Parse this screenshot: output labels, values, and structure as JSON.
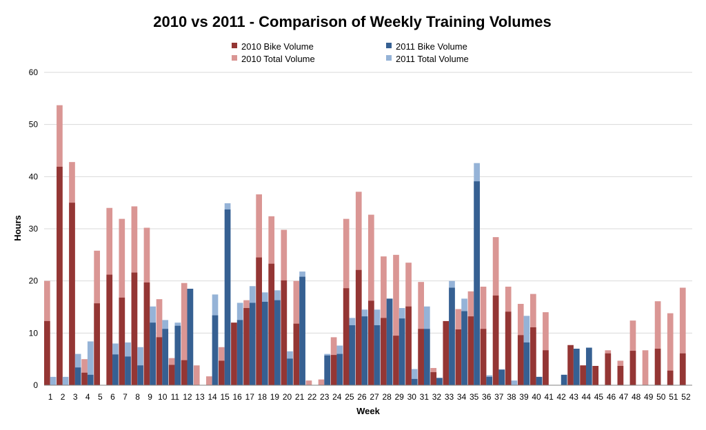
{
  "colors": {
    "bike_2010": "#943634",
    "total_2010": "#DA9694",
    "bike_2011": "#366092",
    "total_2011": "#95B3D7",
    "grid": "#D9D9D9",
    "axis": "#808080"
  },
  "chart_data": {
    "type": "bar",
    "title": "2010 vs 2011 - Comparison of Weekly Training Volumes",
    "xlabel": "Week",
    "ylabel": "Hours",
    "ylim": [
      0,
      60
    ],
    "yticks": [
      "0",
      "10",
      "20",
      "30",
      "40",
      "50",
      "60"
    ],
    "grid": true,
    "legend_position": "top-center",
    "categories": [
      "1",
      "2",
      "3",
      "4",
      "5",
      "6",
      "7",
      "8",
      "9",
      "10",
      "11",
      "12",
      "13",
      "14",
      "15",
      "16",
      "17",
      "18",
      "19",
      "20",
      "21",
      "22",
      "23",
      "24",
      "25",
      "26",
      "27",
      "28",
      "29",
      "30",
      "31",
      "32",
      "33",
      "34",
      "35",
      "36",
      "37",
      "38",
      "39",
      "40",
      "41",
      "42",
      "43",
      "44",
      "45",
      "46",
      "47",
      "48",
      "49",
      "50",
      "51",
      "52"
    ],
    "series": [
      {
        "name": "2010 Total Volume",
        "year": "2010",
        "kind": "total",
        "values": [
          20,
          53.7,
          42.8,
          5,
          25.8,
          34,
          31.9,
          34.3,
          30.2,
          16.5,
          5.2,
          19.6,
          3.8,
          1.7,
          7.3,
          12,
          16.3,
          36.6,
          32.4,
          29.8,
          20,
          0.9,
          1.1,
          9.2,
          31.9,
          37.1,
          32.7,
          24.7,
          25,
          23.5,
          19.8,
          3.3,
          12.3,
          14.6,
          18,
          18.9,
          28.4,
          18.9,
          15.6,
          17.5,
          14,
          0,
          0,
          3.8,
          3.7,
          6.7,
          4.7,
          12.4,
          6.7,
          16.1,
          13.8,
          18.7
        ]
      },
      {
        "name": "2010 Bike Volume",
        "year": "2010",
        "kind": "bike",
        "values": [
          12.3,
          41.9,
          35,
          2.4,
          15.7,
          21.2,
          16.8,
          21.6,
          19.7,
          9.2,
          3.9,
          4.8,
          0,
          0,
          4.7,
          12,
          14.8,
          24.5,
          23.3,
          20.1,
          11.8,
          0,
          0,
          5.8,
          18.6,
          22.1,
          16.2,
          12.9,
          9.5,
          15.1,
          10.8,
          2.5,
          12.3,
          10.7,
          13.2,
          10.8,
          17.2,
          14.1,
          9.6,
          11.1,
          6.7,
          0,
          7.7,
          3.8,
          3.7,
          6.1,
          3.7,
          6.6,
          0,
          7,
          2.8,
          6.1
        ]
      },
      {
        "name": "2011 Total Volume",
        "year": "2011",
        "kind": "total",
        "values": [
          1.6,
          1.6,
          6,
          8.4,
          0,
          8,
          8.2,
          7.3,
          15.1,
          12.5,
          12,
          18.5,
          0,
          17.4,
          34.9,
          15.8,
          19,
          17.8,
          18.2,
          6.5,
          21.8,
          0,
          6,
          7.6,
          12.9,
          14.5,
          14.5,
          16.6,
          14.8,
          3.1,
          15.1,
          1.4,
          20,
          16.6,
          42.6,
          1.9,
          3,
          0.9,
          13.3,
          1.6,
          0,
          2,
          7,
          7.2,
          0,
          0,
          0,
          0,
          0,
          0,
          0,
          0
        ]
      },
      {
        "name": "2011 Bike Volume",
        "year": "2011",
        "kind": "bike",
        "values": [
          0,
          0,
          3.4,
          2,
          0,
          5.9,
          5.5,
          3.8,
          12,
          10.8,
          11.4,
          18.5,
          0,
          13.4,
          33.7,
          12.5,
          15.8,
          16,
          16.3,
          5.1,
          20.8,
          0,
          5.7,
          6,
          11.5,
          13.2,
          11.5,
          16.6,
          12.8,
          1.2,
          10.8,
          1.4,
          18.7,
          14.2,
          39.1,
          1.6,
          3,
          0,
          8.2,
          1.6,
          0,
          2,
          7,
          7.2,
          0,
          0,
          0,
          0,
          0,
          0,
          0,
          0
        ]
      }
    ],
    "legend": [
      {
        "label": "2010 Bike Volume",
        "color_key": "bike_2010"
      },
      {
        "label": "2011 Bike Volume",
        "color_key": "bike_2011"
      },
      {
        "label": "2010 Total Volume",
        "color_key": "total_2010"
      },
      {
        "label": "2011 Total Volume",
        "color_key": "total_2011"
      }
    ]
  }
}
